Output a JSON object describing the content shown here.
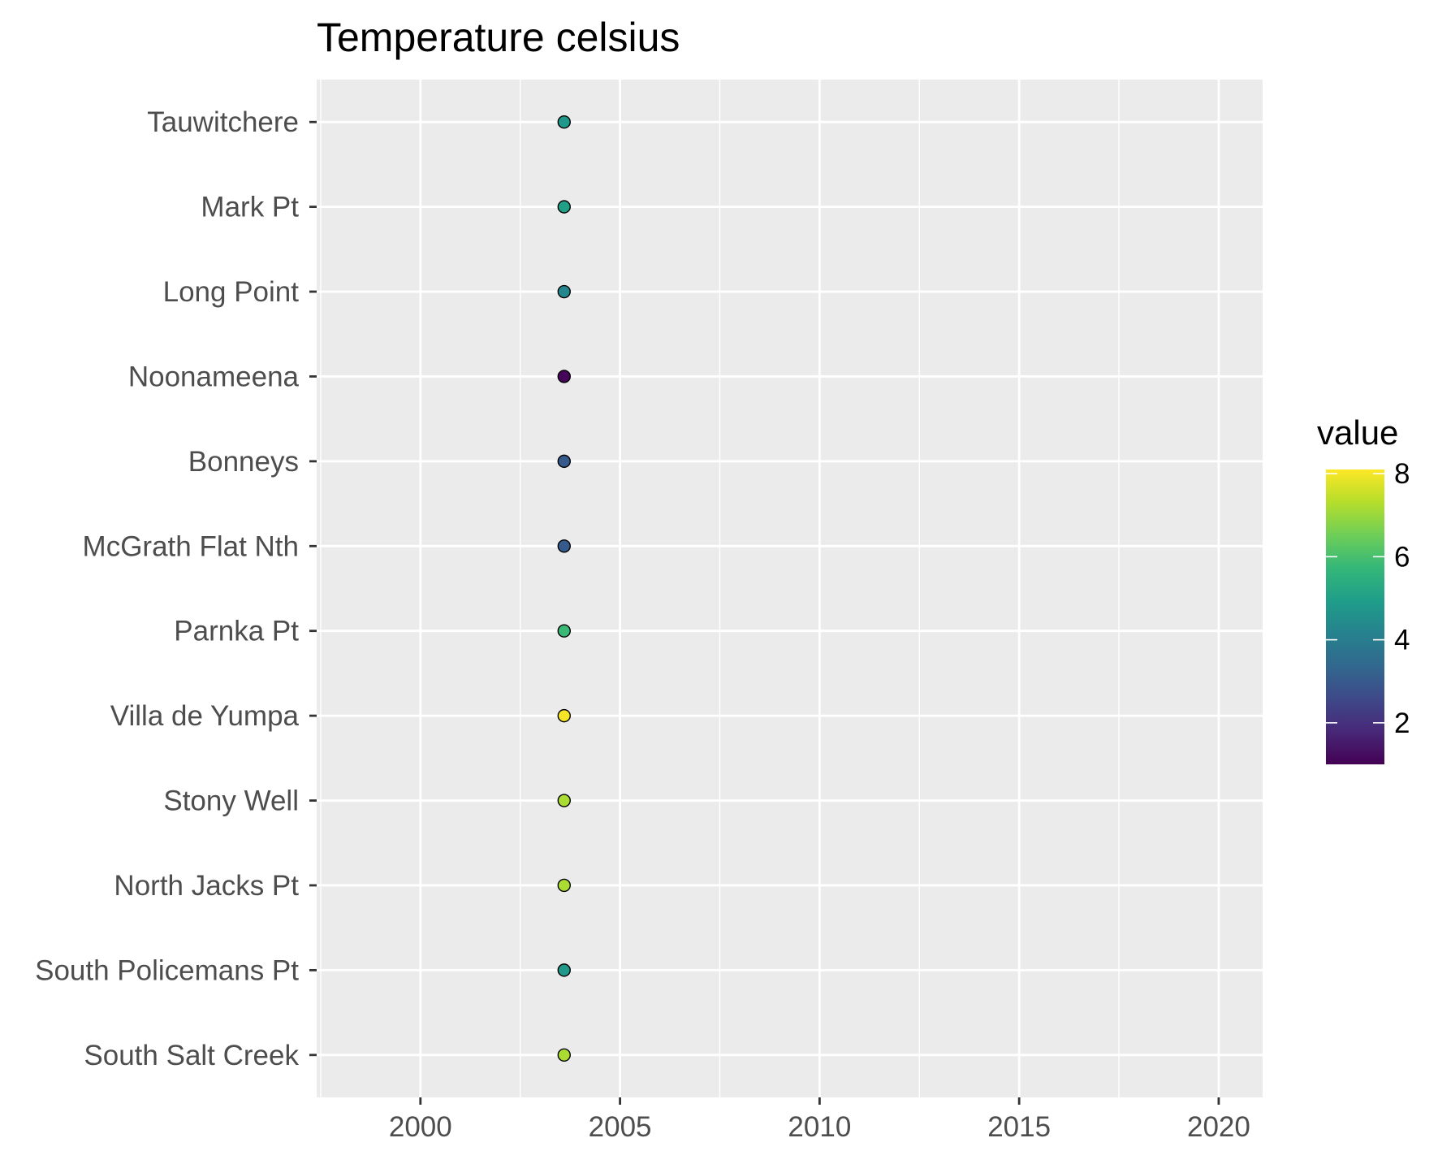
{
  "chart_data": {
    "type": "scatter",
    "title": "Temperature celsius",
    "xlabel": "",
    "ylabel": "",
    "xlim": [
      1997.4,
      2021.1
    ],
    "x_ticks": [
      2000,
      2005,
      2010,
      2015,
      2020
    ],
    "x_tick_labels": [
      "2000",
      "2005",
      "2010",
      "2015",
      "2020"
    ],
    "categories": [
      "Tauwitchere",
      "Mark Pt",
      "Long Point",
      "Noonameena",
      "Bonneys",
      "McGrath Flat Nth",
      "Parnka Pt",
      "Villa de Yumpa",
      "Stony Well",
      "North Jacks Pt",
      "South Policemans Pt",
      "South Salt Creek"
    ],
    "points": [
      {
        "site": "Tauwitchere",
        "x": 2003.6,
        "value": 4.8
      },
      {
        "site": "Mark Pt",
        "x": 2003.6,
        "value": 5.0
      },
      {
        "site": "Long Point",
        "x": 2003.6,
        "value": 4.3
      },
      {
        "site": "Noonameena",
        "x": 2003.6,
        "value": 1.1
      },
      {
        "site": "Bonneys",
        "x": 2003.6,
        "value": 3.0
      },
      {
        "site": "McGrath Flat Nth",
        "x": 2003.6,
        "value": 3.0
      },
      {
        "site": "Parnka Pt",
        "x": 2003.6,
        "value": 5.8
      },
      {
        "site": "Villa de Yumpa",
        "x": 2003.6,
        "value": 8.0
      },
      {
        "site": "Stony Well",
        "x": 2003.6,
        "value": 7.2
      },
      {
        "site": "North Jacks Pt",
        "x": 2003.6,
        "value": 7.2
      },
      {
        "site": "South Policemans Pt",
        "x": 2003.6,
        "value": 4.8
      },
      {
        "site": "South Salt Creek",
        "x": 2003.6,
        "value": 7.2
      }
    ],
    "grid": true,
    "legend": {
      "title": "value",
      "position": "right",
      "min": 1.0,
      "max": 8.1,
      "breaks": [
        2,
        4,
        6,
        8
      ],
      "break_labels": [
        "2",
        "4",
        "6",
        "8"
      ],
      "palette": [
        "#440154",
        "#482878",
        "#3e4989",
        "#31688e",
        "#26828e",
        "#1f9e89",
        "#35b779",
        "#6ece58",
        "#b5de2b",
        "#fde725"
      ]
    },
    "colors": {
      "panel": "#ebebeb",
      "grid": "#ffffff",
      "axis_text": "#4d4d4d",
      "point_stroke": "#000000"
    }
  }
}
